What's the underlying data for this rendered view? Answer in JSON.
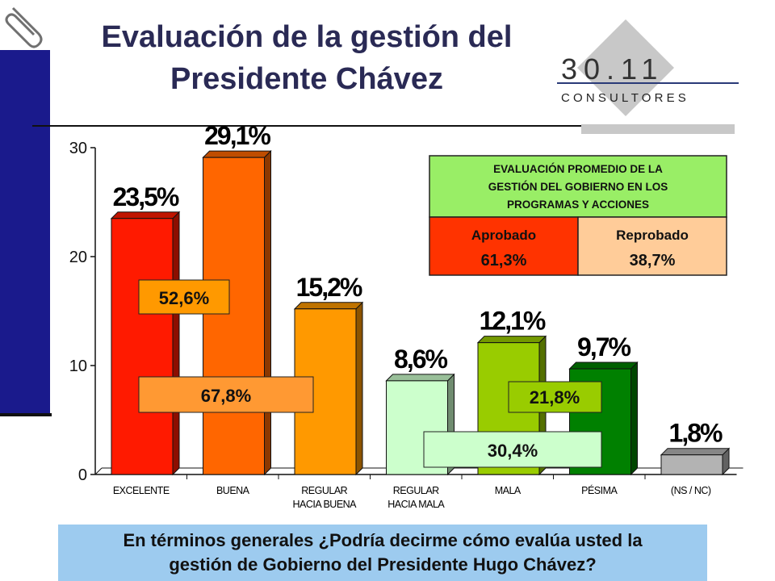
{
  "header": {
    "title_line1": "Evaluación de la gestión del",
    "title_line2": "Presidente Chávez"
  },
  "logo": {
    "number": "30.11",
    "word": "C O N S U L T O R E S"
  },
  "question": {
    "line1": "En términos generales ¿Podría decirme cómo evalúa usted la",
    "line2": "gestión de Gobierno del Presidente Hugo Chávez?"
  },
  "summary_box": {
    "header": [
      "EVALUACIÓN PROMEDIO DE LA",
      "GESTIÓN DEL GOBIERNO EN LOS",
      "PROGRAMAS Y ACCIONES"
    ],
    "approved_label": "Aprobado",
    "approved_value": "61,3%",
    "rejected_label": "Reprobado",
    "rejected_value": "38,7%",
    "colors": {
      "header": "#99ee66",
      "approved": "#ff3300",
      "rejected": "#ffcc99"
    }
  },
  "chart_data": {
    "type": "bar",
    "categories": [
      [
        "EXCELENTE"
      ],
      [
        "BUENA"
      ],
      [
        "REGULAR",
        "HACIA BUENA"
      ],
      [
        "REGULAR",
        "HACIA MALA"
      ],
      [
        "MALA"
      ],
      [
        "PÉSIMA"
      ],
      [
        "(NS / NC)"
      ]
    ],
    "values": [
      23.5,
      29.1,
      15.2,
      8.6,
      12.1,
      9.7,
      1.8
    ],
    "value_labels": [
      "23,5%",
      "29,1%",
      "15,2%",
      "8,6%",
      "12,1%",
      "9,7%",
      "1,8%"
    ],
    "colors": [
      "#ff1a00",
      "#ff6600",
      "#ff9900",
      "#ccffcc",
      "#99cc00",
      "#008000",
      "#b3b3b3"
    ],
    "ylim": [
      0,
      30
    ],
    "yticks": [
      0,
      10,
      20,
      30
    ],
    "group_labels": [
      {
        "text": "52,6%",
        "color": "#ff9900"
      },
      {
        "text": "67,8%",
        "color": "#ff9933"
      },
      {
        "text": "21,8%",
        "color": "#99cc00"
      },
      {
        "text": "30,4%",
        "color": "#ccffcc"
      }
    ]
  }
}
